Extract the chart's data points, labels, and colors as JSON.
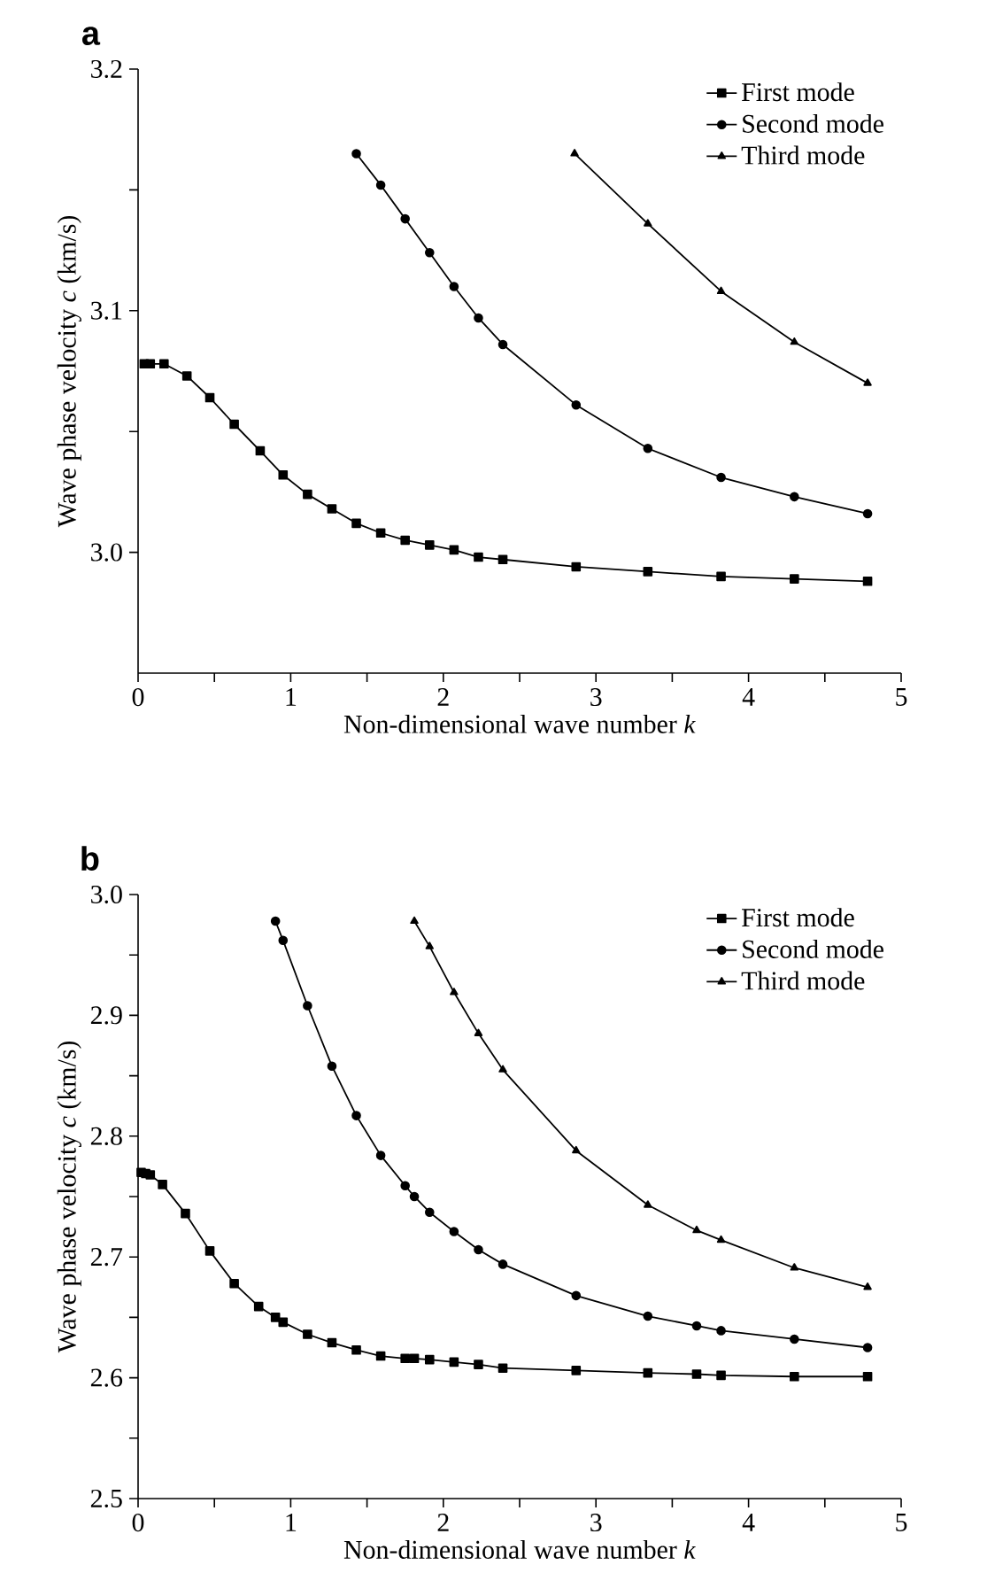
{
  "chart_data": [
    {
      "type": "line",
      "title": "a",
      "xlabel": "Non-dimensional wave number *k*",
      "ylabel": "Wave phase velocity *c* (km/s)",
      "xlim": [
        0,
        5
      ],
      "ylim": [
        2.95,
        3.2
      ],
      "xticks": [
        0,
        {
          "value": 0.5,
          "label": null
        },
        1,
        {
          "value": 1.5,
          "label": null
        },
        2,
        {
          "value": 2.5,
          "label": null
        },
        3,
        {
          "value": 3.5,
          "label": null
        },
        4,
        {
          "value": 4.5,
          "label": null
        },
        5
      ],
      "yticks": [
        {
          "value": 3.0,
          "label": "3.0"
        },
        {
          "value": 3.05,
          "label": null
        },
        3.1,
        {
          "value": 3.15,
          "label": null
        },
        3.2
      ],
      "legend": "top right",
      "line_style": "solid",
      "series": [
        {
          "name": "First mode",
          "color": "#000000",
          "marker": "square",
          "x": [
            0.04,
            0.08,
            0.17,
            0.32,
            0.47,
            0.63,
            0.8,
            0.95,
            1.11,
            1.27,
            1.43,
            1.59,
            1.75,
            1.91,
            2.07,
            2.23,
            2.39,
            2.87,
            3.34,
            3.82,
            4.3,
            4.78
          ],
          "values": [
            3.078,
            3.078,
            3.078,
            3.073,
            3.064,
            3.053,
            3.042,
            3.032,
            3.024,
            3.018,
            3.012,
            3.008,
            3.005,
            3.003,
            3.001,
            2.998,
            2.997,
            2.994,
            2.992,
            2.99,
            2.989,
            2.988
          ]
        },
        {
          "name": "Second mode",
          "color": "#000000",
          "marker": "circle",
          "x": [
            1.43,
            1.59,
            1.75,
            1.91,
            2.07,
            2.23,
            2.39,
            2.87,
            3.34,
            3.82,
            4.3,
            4.78
          ],
          "values": [
            3.165,
            3.152,
            3.138,
            3.124,
            3.11,
            3.097,
            3.086,
            3.061,
            3.043,
            3.031,
            3.023,
            3.016
          ]
        },
        {
          "name": "Third mode",
          "color": "#000000",
          "marker": "triangle",
          "x": [
            2.86,
            3.34,
            3.82,
            4.3,
            4.78
          ],
          "values": [
            3.165,
            3.136,
            3.108,
            3.087,
            3.07
          ]
        }
      ]
    },
    {
      "type": "line",
      "title": "b",
      "xlabel": "Non-dimensional wave number *k*",
      "ylabel": "Wave phase velocity *c* (km/s)",
      "xlim": [
        0,
        5
      ],
      "ylim": [
        2.5,
        3.0
      ],
      "xticks": [
        0,
        {
          "value": 0.5,
          "label": null
        },
        1,
        {
          "value": 1.5,
          "label": null
        },
        2,
        {
          "value": 2.5,
          "label": null
        },
        3,
        {
          "value": 3.5,
          "label": null
        },
        4,
        {
          "value": 4.5,
          "label": null
        },
        5
      ],
      "yticks": [
        2.5,
        {
          "value": 2.55,
          "label": null
        },
        2.6,
        {
          "value": 2.65,
          "label": null
        },
        2.7,
        {
          "value": 2.75,
          "label": null
        },
        2.8,
        {
          "value": 2.85,
          "label": null
        },
        2.9,
        {
          "value": 2.95,
          "label": null
        },
        {
          "value": 3.0,
          "label": "3.0"
        }
      ],
      "legend": "top right",
      "line_style": "solid",
      "series": [
        {
          "name": "First mode",
          "color": "#000000",
          "marker": "square",
          "x": [
            0.02,
            0.05,
            0.08,
            0.16,
            0.31,
            0.47,
            0.63,
            0.79,
            0.9,
            0.95,
            1.11,
            1.27,
            1.43,
            1.59,
            1.75,
            1.81,
            1.91,
            2.07,
            2.23,
            2.39,
            2.87,
            3.34,
            3.66,
            3.82,
            4.3,
            4.78
          ],
          "values": [
            2.77,
            2.769,
            2.768,
            2.76,
            2.736,
            2.705,
            2.678,
            2.659,
            2.65,
            2.646,
            2.636,
            2.629,
            2.623,
            2.618,
            2.616,
            2.616,
            2.615,
            2.613,
            2.611,
            2.608,
            2.606,
            2.604,
            2.603,
            2.602,
            2.601,
            2.601
          ]
        },
        {
          "name": "Second mode",
          "color": "#000000",
          "marker": "circle",
          "x": [
            0.9,
            0.95,
            1.11,
            1.27,
            1.43,
            1.59,
            1.75,
            1.81,
            1.91,
            2.07,
            2.23,
            2.39,
            2.87,
            3.34,
            3.66,
            3.82,
            4.3,
            4.78
          ],
          "values": [
            2.978,
            2.962,
            2.908,
            2.858,
            2.817,
            2.784,
            2.759,
            2.75,
            2.737,
            2.721,
            2.706,
            2.694,
            2.668,
            2.651,
            2.643,
            2.639,
            2.632,
            2.625
          ]
        },
        {
          "name": "Third mode",
          "color": "#000000",
          "marker": "triangle",
          "x": [
            1.81,
            1.91,
            2.07,
            2.23,
            2.39,
            2.87,
            3.34,
            3.66,
            3.82,
            4.3,
            4.78
          ],
          "values": [
            2.978,
            2.957,
            2.919,
            2.885,
            2.855,
            2.788,
            2.743,
            2.722,
            2.714,
            2.691,
            2.675
          ]
        }
      ]
    }
  ]
}
